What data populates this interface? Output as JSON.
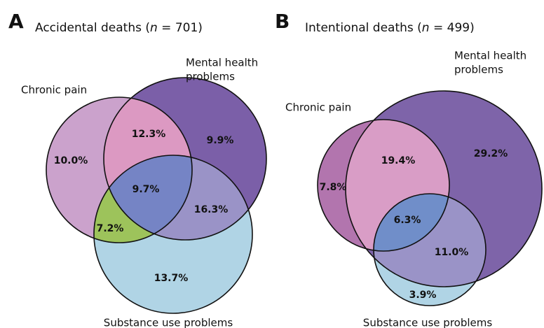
{
  "panels": [
    {
      "letter": "A",
      "title_parts": [
        "Accidental deaths (",
        "n",
        " = 701)"
      ],
      "sets": {
        "chronic_pain": [
          "Chronic pain"
        ],
        "mental_health": [
          "Mental health",
          "problems"
        ],
        "substance_use": [
          "Substance use problems"
        ]
      },
      "regions": {
        "chronic_only": "10.0%",
        "chronic_mental": "12.3%",
        "mental_only": "9.9%",
        "all_three": "9.7%",
        "chronic_substance": "7.2%",
        "mental_substance": "16.3%",
        "substance_only": "13.7%"
      }
    },
    {
      "letter": "B",
      "title_parts": [
        "Intentional deaths (",
        "n",
        " = 499)"
      ],
      "sets": {
        "chronic_pain": [
          "Chronic pain"
        ],
        "mental_health": [
          "Mental health",
          "problems"
        ],
        "substance_use": [
          "Substance use problems"
        ]
      },
      "regions": {
        "chronic_only": "7.8%",
        "chronic_mental": "19.4%",
        "mental_only": "29.2%",
        "all_three": "6.3%",
        "mental_substance": "11.0%",
        "substance_only": "3.9%"
      }
    }
  ]
}
